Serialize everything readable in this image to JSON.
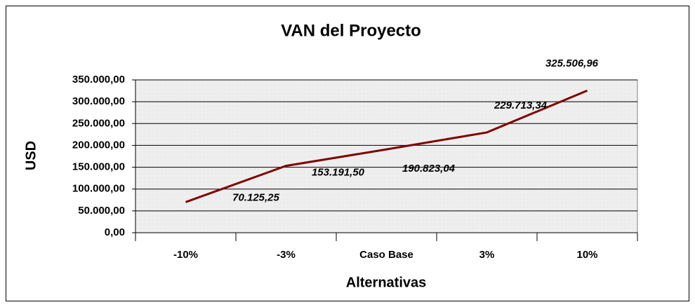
{
  "chart_data": {
    "type": "line",
    "title": "VAN del Proyecto",
    "x_label": "Alternativas",
    "y_label": "USD",
    "categories": [
      "-10%",
      "-3%",
      "Caso Base",
      "3%",
      "10%"
    ],
    "series": [
      {
        "name": "VAN",
        "color": "#800000",
        "values": [
          70125.25,
          153191.5,
          190823.04,
          229713.34,
          325506.96
        ],
        "value_labels": [
          "70.125,25",
          "153.191,50",
          "190.823,04",
          "229.713,34",
          "325.506,96"
        ]
      }
    ],
    "ylim": [
      0,
      350000
    ],
    "yticks": [
      {
        "value": 0,
        "label": "0,00"
      },
      {
        "value": 50000,
        "label": "50.000,00"
      },
      {
        "value": 100000,
        "label": "100.000,00"
      },
      {
        "value": 150000,
        "label": "150.000,00"
      },
      {
        "value": 200000,
        "label": "200.000,00"
      },
      {
        "value": 250000,
        "label": "250.000,00"
      },
      {
        "value": 300000,
        "label": "300.000,00"
      },
      {
        "value": 350000,
        "label": "350.000,00"
      }
    ],
    "grid": true
  }
}
